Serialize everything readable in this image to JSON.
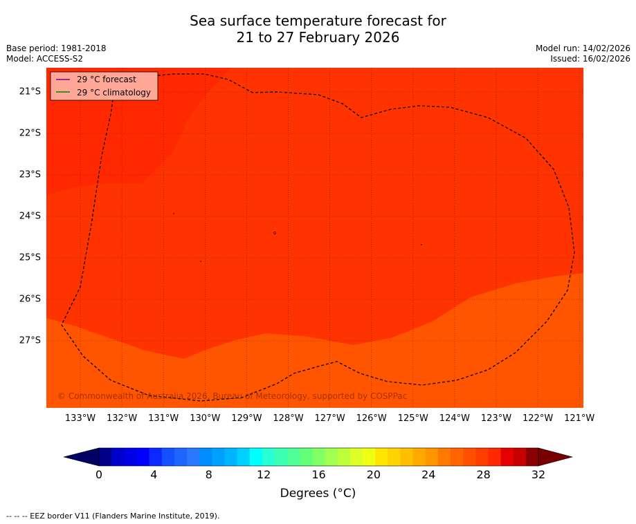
{
  "title_line1": "Sea surface temperature forecast for",
  "title_line2": "21 to 27 February 2026",
  "base_period": "Base period: 1981-2018",
  "model": "Model: ACCESS-S2",
  "model_run": "Model run: 14/02/2026",
  "issued": "Issued: 16/02/2026",
  "legend": {
    "forecast_label": "29 °C  forecast",
    "forecast_color": "#800080",
    "climatology_label": "29 °C  climatology",
    "climatology_color": "#008000"
  },
  "copyright": "© Commonwealth of Australia 2026, Bureau of Meteorology, supported by COSPPac",
  "lat_labels": [
    "21°S",
    "22°S",
    "23°S",
    "24°S",
    "25°S",
    "26°S",
    "27°S"
  ],
  "lon_labels": [
    "133°W",
    "132°W",
    "131°W",
    "130°W",
    "129°W",
    "128°W",
    "127°W",
    "126°W",
    "125°W",
    "124°W",
    "123°W",
    "122°W",
    "121°W"
  ],
  "colorbar": {
    "ticks": [
      "0",
      "4",
      "8",
      "12",
      "16",
      "20",
      "24",
      "28",
      "32"
    ],
    "label": "Degrees (°C)",
    "colors": [
      "#00008b",
      "#0000cd",
      "#0000e6",
      "#0000ff",
      "#0a28ff",
      "#1450ff",
      "#1e64ff",
      "#2878ff",
      "#008cff",
      "#00a0ff",
      "#00b4ff",
      "#00d2ff",
      "#00ffff",
      "#28ffd2",
      "#3cffb4",
      "#50ff96",
      "#64ff78",
      "#82ff64",
      "#a0ff50",
      "#beff3c",
      "#dcff28",
      "#f0ff14",
      "#ffe600",
      "#ffd200",
      "#ffbe00",
      "#ffaa00",
      "#ff9600",
      "#ff7800",
      "#ff6400",
      "#ff5000",
      "#ff3c00",
      "#ff2800",
      "#e60000",
      "#c80000",
      "#8b0000"
    ],
    "under_color": "#000064",
    "over_color": "#780000"
  },
  "field_colors": {
    "warm": "#ff2800",
    "mid": "#ff3300",
    "cool": "#ff5500"
  },
  "footer": "--  --  -- EEZ border V11 (Flanders Marine Institute, 2019)."
}
